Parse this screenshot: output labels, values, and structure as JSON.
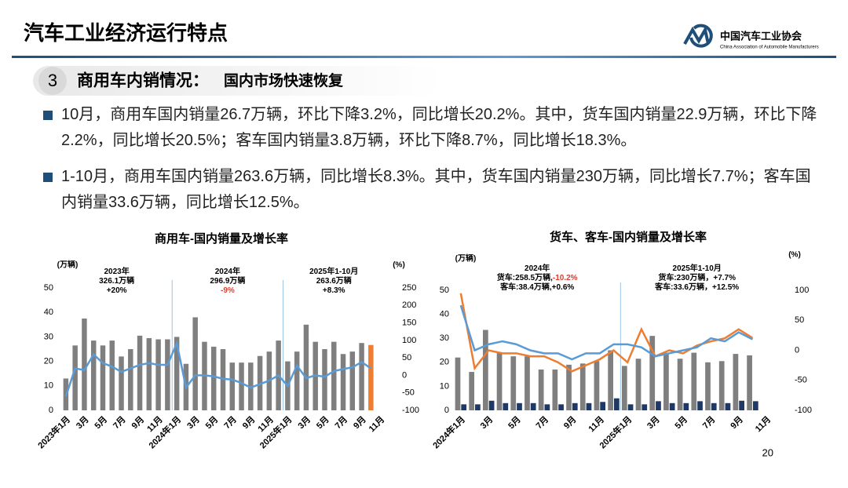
{
  "header": {
    "title": "汽车工业经济运行特点",
    "logo": "中国汽车工业协会",
    "logo_en": "China Association of Automobile Manufacturers"
  },
  "section": {
    "number": "3",
    "title": "商用车内销情况：",
    "subtitle": "国内市场快速恢复"
  },
  "bullets": [
    "10月，商用车国内销量26.7万辆，环比下降3.2%，同比增长20.2%。其中，货车国内销量22.9万辆，环比下降2.2%，同比增长20.5%；客车国内销量3.8万辆，环比下降8.7%，同比增长18.3%。",
    "1-10月，商用车国内销量263.6万辆，同比增长8.3%。其中，货车国内销量230万辆，同比增长7.7%；客车国内销量33.6万辆，同比增长12.5%。"
  ],
  "page_number": "20",
  "chart_data": [
    {
      "type": "combo",
      "title": "商用车-国内销量及增长率",
      "ylabel": "(万辆)",
      "y2label": "(%)",
      "categories": [
        "2023年1月",
        null,
        "3月",
        null,
        "5月",
        null,
        "7月",
        null,
        "9月",
        null,
        "11月",
        null,
        "2024年1月",
        null,
        "3月",
        null,
        "5月",
        null,
        "7月",
        null,
        "9月",
        null,
        "11月",
        null,
        "2025年1月",
        null,
        "3月",
        null,
        "5月",
        null,
        "7月",
        null,
        "9月",
        null,
        "11月"
      ],
      "series": [
        {
          "type": "bar",
          "colors": [
            "#7f7f7f",
            "#7f7f7f",
            "#7f7f7f",
            "#7f7f7f",
            "#7f7f7f",
            "#7f7f7f",
            "#7f7f7f",
            "#7f7f7f",
            "#7f7f7f",
            "#7f7f7f",
            "#7f7f7f",
            "#7f7f7f",
            "#7f7f7f",
            "#7f7f7f",
            "#7f7f7f",
            "#7f7f7f",
            "#7f7f7f",
            "#7f7f7f",
            "#7f7f7f",
            "#7f7f7f",
            "#7f7f7f",
            "#7f7f7f",
            "#7f7f7f",
            "#7f7f7f",
            "#7f7f7f",
            "#7f7f7f",
            "#7f7f7f",
            "#7f7f7f",
            "#7f7f7f",
            "#7f7f7f",
            "#7f7f7f",
            "#7f7f7f",
            "#7f7f7f",
            "#ed7d31",
            null
          ],
          "values": [
            13,
            26.5,
            37.5,
            28.5,
            26.5,
            28.5,
            22,
            25,
            30.5,
            29.5,
            29,
            29,
            30,
            19,
            38,
            28,
            26,
            25,
            19.5,
            19.5,
            19.5,
            22.2,
            24,
            28.5,
            20,
            24,
            35,
            28,
            25,
            28,
            23,
            24,
            27.5,
            26.7,
            null
          ]
        },
        {
          "type": "line",
          "axis": "y2",
          "color": "#5b9bd5",
          "values": [
            -60,
            20,
            15,
            60,
            35,
            25,
            10,
            20,
            30,
            35,
            30,
            30,
            92,
            -35,
            0,
            0,
            -3,
            -10,
            -12,
            -22,
            -35,
            -25,
            -15,
            0,
            -30,
            28,
            -8,
            0,
            -4,
            12,
            18,
            23,
            38,
            20.2,
            null
          ]
        }
      ],
      "ylim": [
        0,
        50
      ],
      "yticks": [
        0,
        10,
        20,
        30,
        40,
        50
      ],
      "y2lim": [
        -100,
        250
      ],
      "y2ticks": [
        -100,
        -50,
        0,
        50,
        100,
        150,
        200,
        250
      ],
      "annotations": [
        {
          "lines": [
            [
              {
                "text": "2023年"
              }
            ],
            [
              {
                "text": "326.1万辆"
              }
            ],
            [
              {
                "text": "+20%"
              }
            ]
          ]
        },
        {
          "lines": [
            [
              {
                "text": "2024年"
              }
            ],
            [
              {
                "text": "296.9万辆"
              }
            ],
            [
              {
                "text": "-9%",
                "color": "#e03a2f"
              }
            ]
          ]
        },
        {
          "lines": [
            [
              {
                "text": "2025年1-10月"
              }
            ],
            [
              {
                "text": "263.6万辆"
              }
            ],
            [
              {
                "text": "+8.3%"
              }
            ]
          ]
        }
      ]
    },
    {
      "type": "combo",
      "title": "货车、客车-国内销量及增长率",
      "ylabel": "(万辆)",
      "y2label": "(%)",
      "categories": [
        "2024年1月",
        null,
        "3月",
        null,
        "5月",
        null,
        "7月",
        null,
        "9月",
        null,
        "11月",
        null,
        "2025年1月",
        null,
        "3月",
        null,
        "5月",
        null,
        "7月",
        null,
        "9月",
        null,
        "11月"
      ],
      "series": [
        {
          "type": "bar",
          "color": "#7f7f7f",
          "values": [
            22,
            16,
            33.5,
            24,
            22.5,
            22.5,
            17,
            17,
            19,
            19.5,
            20.5,
            25,
            18.5,
            21.5,
            31,
            24,
            21.5,
            24,
            20,
            20.5,
            23.5,
            22.9,
            null
          ]
        },
        {
          "type": "bar",
          "color": "#1f3864",
          "values": [
            2.5,
            2.5,
            4,
            3,
            3,
            3,
            2.5,
            2.5,
            3,
            3,
            3.5,
            5,
            2.5,
            2.5,
            3.8,
            3,
            3,
            3.8,
            3,
            3,
            4,
            3.8,
            null
          ]
        },
        {
          "type": "line",
          "axis": "y2",
          "color": "#ed7d31",
          "values": [
            95,
            -30,
            0,
            -5,
            -5,
            -10,
            -10,
            -20,
            -35,
            -25,
            -15,
            0,
            -20,
            35,
            -10,
            0,
            -5,
            8,
            15,
            20,
            35,
            20.5,
            null
          ]
        },
        {
          "type": "line",
          "axis": "y2",
          "color": "#5b9bd5",
          "values": [
            75,
            0,
            10,
            15,
            10,
            0,
            -5,
            -5,
            -15,
            -5,
            -5,
            10,
            10,
            5,
            -10,
            -5,
            0,
            5,
            20,
            15,
            30,
            18.3,
            null
          ]
        }
      ],
      "ylim": [
        0,
        50
      ],
      "yticks": [
        0,
        10,
        20,
        30,
        40,
        50
      ],
      "y2lim": [
        -100,
        100
      ],
      "y2ticks": [
        -100,
        -50,
        0,
        50,
        100
      ],
      "annotations": [
        {
          "lines": [
            [
              {
                "text": "2024年"
              }
            ],
            [
              {
                "text": "货车:258.5万辆,"
              },
              {
                "text": "-10.2%",
                "color": "#e03a2f"
              }
            ],
            [
              {
                "text": "客车:38.4万辆,+0.6%"
              }
            ]
          ]
        },
        {
          "lines": [
            [
              {
                "text": "2025年1-10月"
              }
            ],
            [
              {
                "text": "货车:230万辆，+7.7%"
              }
            ],
            [
              {
                "text": "客车:33.6万辆，+12.5%"
              }
            ]
          ]
        }
      ]
    }
  ]
}
